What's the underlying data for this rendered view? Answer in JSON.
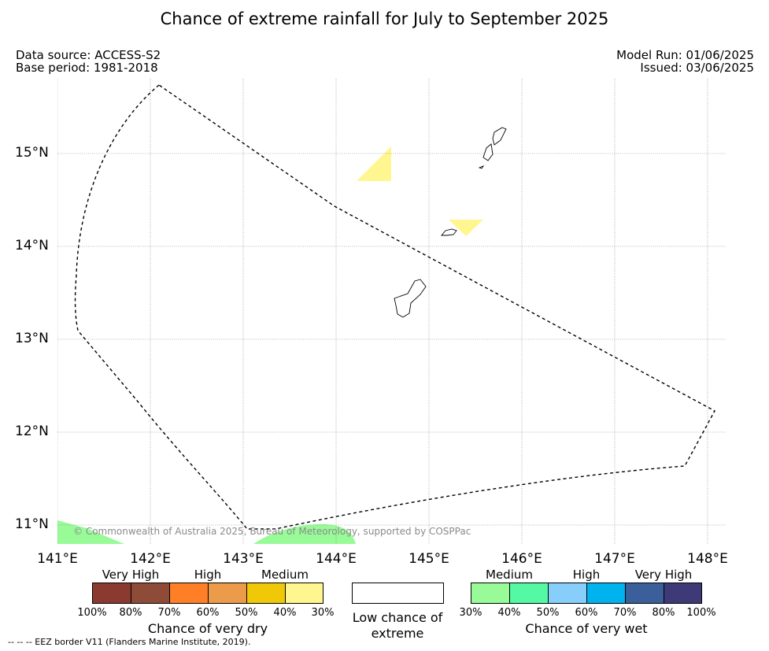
{
  "title": "Chance of extreme rainfall for July to September 2025",
  "data_source": "Data source: ACCESS-S2",
  "base_period": "Base period: 1981-2018",
  "model_run": "Model Run: 01/06/2025",
  "issued": "Issued: 03/06/2025",
  "copyright": "© Commonwealth of Australia 2025, Bureau of Meteorology, supported by COSPPac",
  "eez_note": "--  --  -- EEZ border V11 (Flanders Marine Institute, 2019).",
  "map": {
    "lat_ticks": [
      "15°N",
      "14°N",
      "13°N",
      "12°N",
      "11°N"
    ],
    "lon_ticks": [
      "141°E",
      "142°E",
      "143°E",
      "144°E",
      "145°E",
      "146°E",
      "147°E",
      "148°E"
    ],
    "islands": [
      "guam-island",
      "rota-island",
      "tinian-island",
      "saipan-island"
    ],
    "eez_border_style": "dashed",
    "forecast_regions": [
      {
        "category": "Chance of very dry",
        "level": "30%-40%",
        "color": "#fff68f",
        "area": "north-central"
      },
      {
        "category": "Chance of very dry",
        "level": "30%-40%",
        "color": "#fff68f",
        "area": "near-rota"
      },
      {
        "category": "Chance of very wet",
        "level": "30%-40%",
        "color": "#98fb98",
        "area": "south-west-edge"
      },
      {
        "category": "Chance of very wet",
        "level": "30%-40%",
        "color": "#98fb98",
        "area": "south-central-edge"
      }
    ]
  },
  "legend": {
    "dry": {
      "title": "Chance of very dry",
      "categories": [
        "Very High",
        "High",
        "Medium"
      ],
      "colors": [
        "#8b3a2f",
        "#8e4c38",
        "#ff7f27",
        "#ec9b4a",
        "#f0c808",
        "#fff68f"
      ],
      "percents": [
        "100%",
        "80%",
        "70%",
        "60%",
        "50%",
        "40%",
        "30%"
      ]
    },
    "neutral": {
      "title": "Low chance of extreme",
      "color": "#ffffff"
    },
    "wet": {
      "title": "Chance of very wet",
      "categories": [
        "Medium",
        "High",
        "Very High"
      ],
      "colors": [
        "#98fb98",
        "#55f9a3",
        "#87cefa",
        "#00b2ee",
        "#3a5f9a",
        "#3e3a77"
      ],
      "percents": [
        "30%",
        "40%",
        "50%",
        "60%",
        "70%",
        "80%",
        "100%"
      ]
    }
  }
}
